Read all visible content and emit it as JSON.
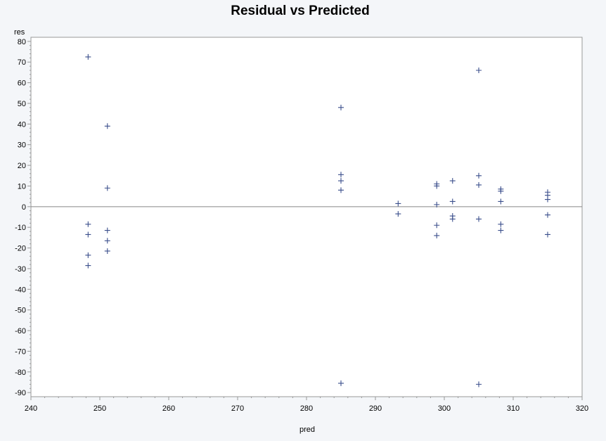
{
  "chart_data": {
    "type": "scatter",
    "title": "Residual vs Predicted",
    "xlabel": "pred",
    "ylabel": "res",
    "xlim": [
      240,
      320
    ],
    "ylim": [
      -92,
      82
    ],
    "x_ticks": [
      240,
      250,
      260,
      270,
      280,
      290,
      300,
      310,
      320
    ],
    "y_ticks": [
      80,
      70,
      60,
      50,
      40,
      30,
      20,
      10,
      0,
      -10,
      -20,
      -30,
      -40,
      -50,
      -60,
      -70,
      -80,
      -90
    ],
    "reference_line_y": 0,
    "grid": false,
    "marker": "plus",
    "colors": {
      "marker": "#3b4f8c",
      "axis": "#999999",
      "reference": "#888888",
      "frame_bg": "#ffffff",
      "page_bg": "#f4f6f9"
    },
    "points": [
      {
        "x": 248.3,
        "y": 72.5
      },
      {
        "x": 248.3,
        "y": -8.5
      },
      {
        "x": 248.3,
        "y": -13.5
      },
      {
        "x": 248.3,
        "y": -23.5
      },
      {
        "x": 248.3,
        "y": -28.5
      },
      {
        "x": 251.1,
        "y": 39.0
      },
      {
        "x": 251.1,
        "y": 9.0
      },
      {
        "x": 251.1,
        "y": -11.5
      },
      {
        "x": 251.1,
        "y": -16.5
      },
      {
        "x": 251.1,
        "y": -21.5
      },
      {
        "x": 285.0,
        "y": 48.0
      },
      {
        "x": 285.0,
        "y": 15.5
      },
      {
        "x": 285.0,
        "y": 12.5
      },
      {
        "x": 285.0,
        "y": 8.0
      },
      {
        "x": 285.0,
        "y": -85.5
      },
      {
        "x": 293.3,
        "y": 1.5
      },
      {
        "x": 293.3,
        "y": -3.5
      },
      {
        "x": 298.9,
        "y": 11.0
      },
      {
        "x": 298.9,
        "y": 10.0
      },
      {
        "x": 298.9,
        "y": 1.0
      },
      {
        "x": 298.9,
        "y": -9.0
      },
      {
        "x": 298.9,
        "y": -14.0
      },
      {
        "x": 301.2,
        "y": 12.5
      },
      {
        "x": 301.2,
        "y": 2.5
      },
      {
        "x": 301.2,
        "y": -4.5
      },
      {
        "x": 301.2,
        "y": -6.0
      },
      {
        "x": 305.0,
        "y": 66.0
      },
      {
        "x": 305.0,
        "y": 15.0
      },
      {
        "x": 305.0,
        "y": 10.5
      },
      {
        "x": 305.0,
        "y": -6.0
      },
      {
        "x": 305.0,
        "y": -86.0
      },
      {
        "x": 308.2,
        "y": 8.5
      },
      {
        "x": 308.2,
        "y": 7.5
      },
      {
        "x": 308.2,
        "y": 2.5
      },
      {
        "x": 308.2,
        "y": -8.5
      },
      {
        "x": 308.2,
        "y": -11.5
      },
      {
        "x": 315.0,
        "y": 7.0
      },
      {
        "x": 315.0,
        "y": 5.5
      },
      {
        "x": 315.0,
        "y": 3.5
      },
      {
        "x": 315.0,
        "y": -4.0
      },
      {
        "x": 315.0,
        "y": -13.5
      }
    ]
  }
}
